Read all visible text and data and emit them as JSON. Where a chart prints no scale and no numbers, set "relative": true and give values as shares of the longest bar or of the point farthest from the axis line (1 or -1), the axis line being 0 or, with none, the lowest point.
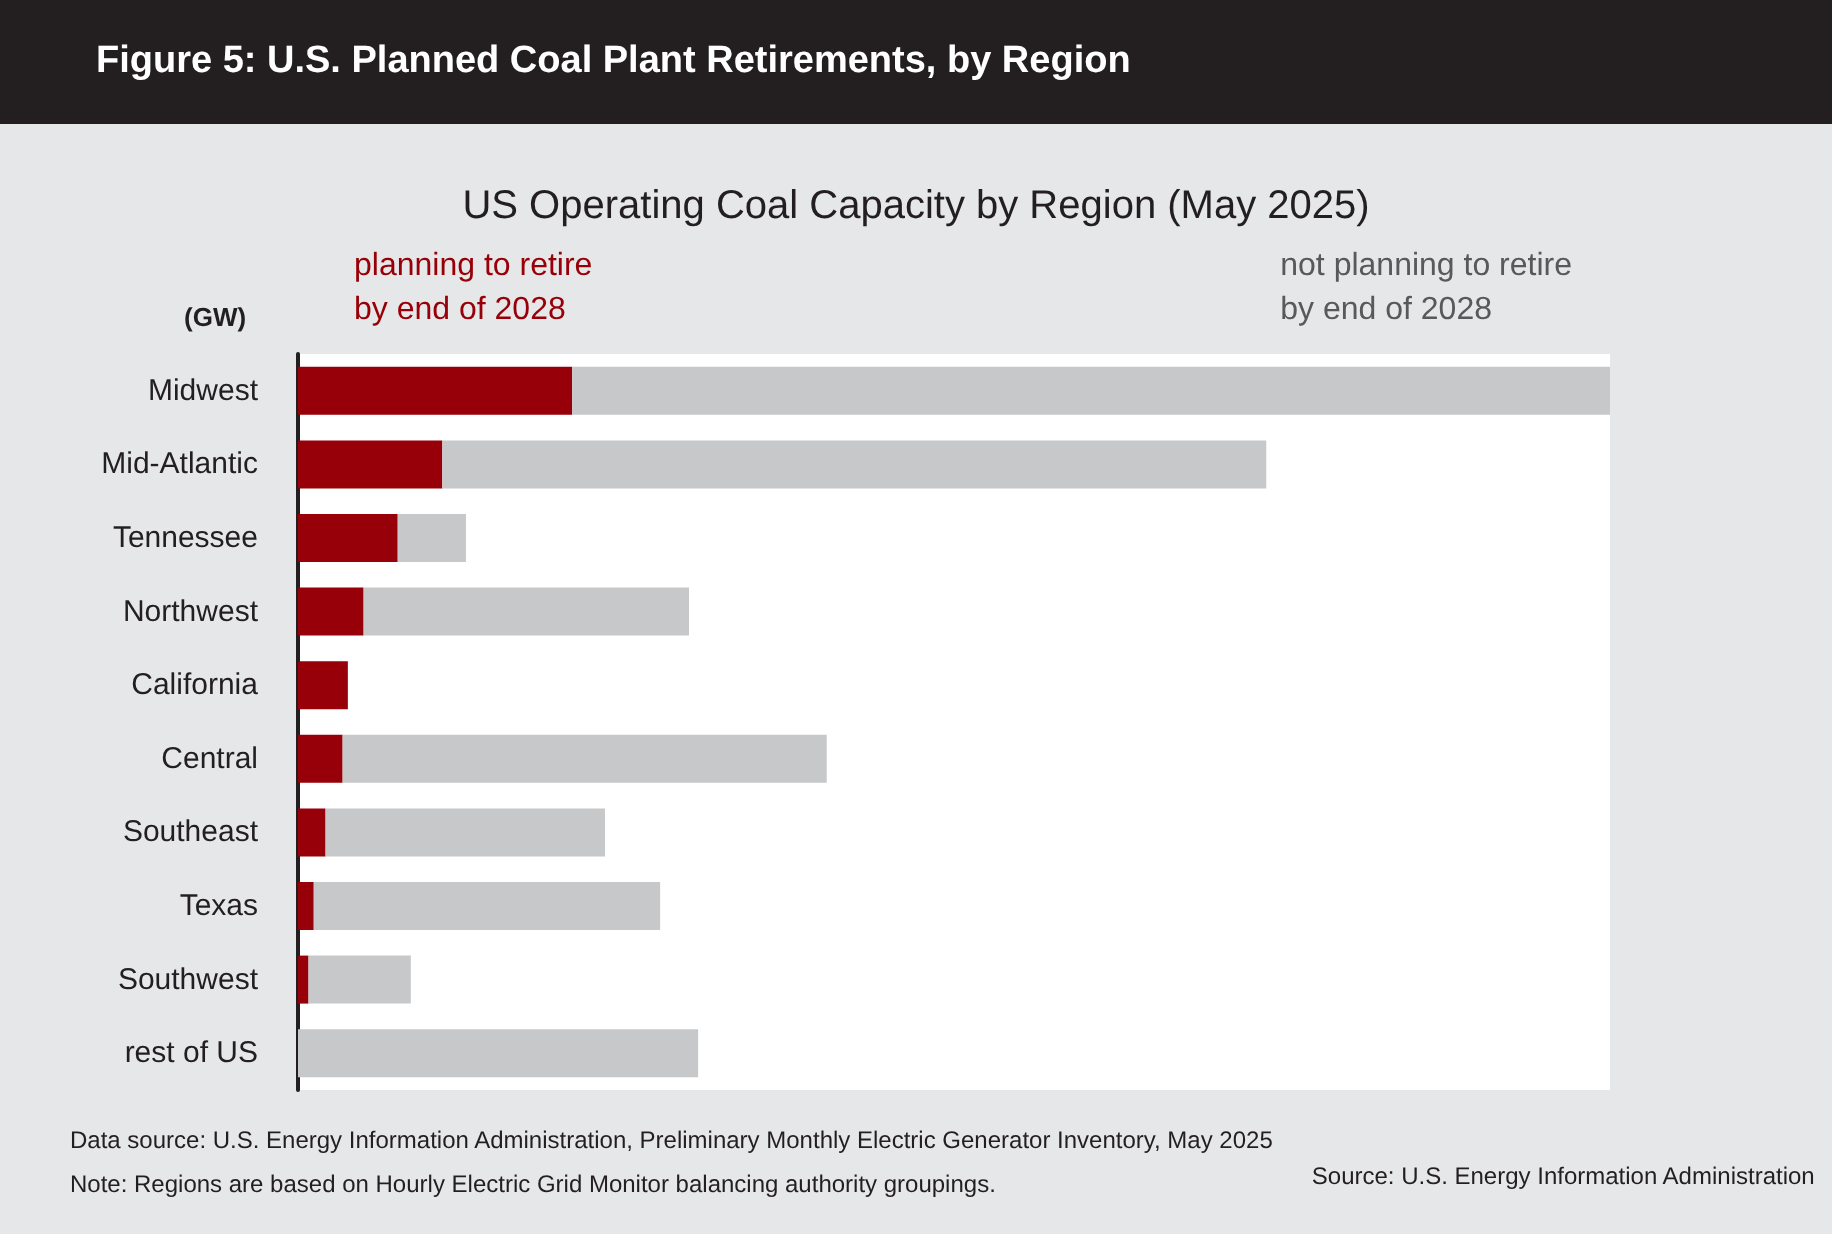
{
  "chart_data": {
    "type": "bar",
    "orientation": "horizontal",
    "stacked": true,
    "relative": true,
    "tick_labels": "y",
    "title": "Figure 5: U.S. Planned Coal Plant Retirements, by Region",
    "subtitle": "US Operating Coal Capacity by Region (May 2025)",
    "ylabel": "(GW)",
    "categories": [
      "Midwest",
      "Mid-Atlantic",
      "Tennessee",
      "Northwest",
      "California",
      "Central",
      "Southeast",
      "Texas",
      "Southwest",
      "rest of US"
    ],
    "series": [
      {
        "name": "planning to retire\nby end of 2028",
        "color": "#970008",
        "values": [
          0.209,
          0.11,
          0.076,
          0.05,
          0.038,
          0.034,
          0.021,
          0.012,
          0.008,
          0
        ]
      },
      {
        "name": "not planning to retire\nby end of 2028",
        "color": "#c7c8ca",
        "values": [
          0.791,
          0.628,
          0.052,
          0.248,
          0,
          0.369,
          0.213,
          0.264,
          0.078,
          0.305
        ]
      }
    ],
    "annotations": [
      "Data source: U.S. Energy Information Administration, Preliminary Monthly Electric Generator Inventory, May 2025",
      "Note: Regions are based on Hourly Electric Grid Monitor balancing authority groupings.",
      "Source: U.S. Energy Information Administration"
    ]
  }
}
